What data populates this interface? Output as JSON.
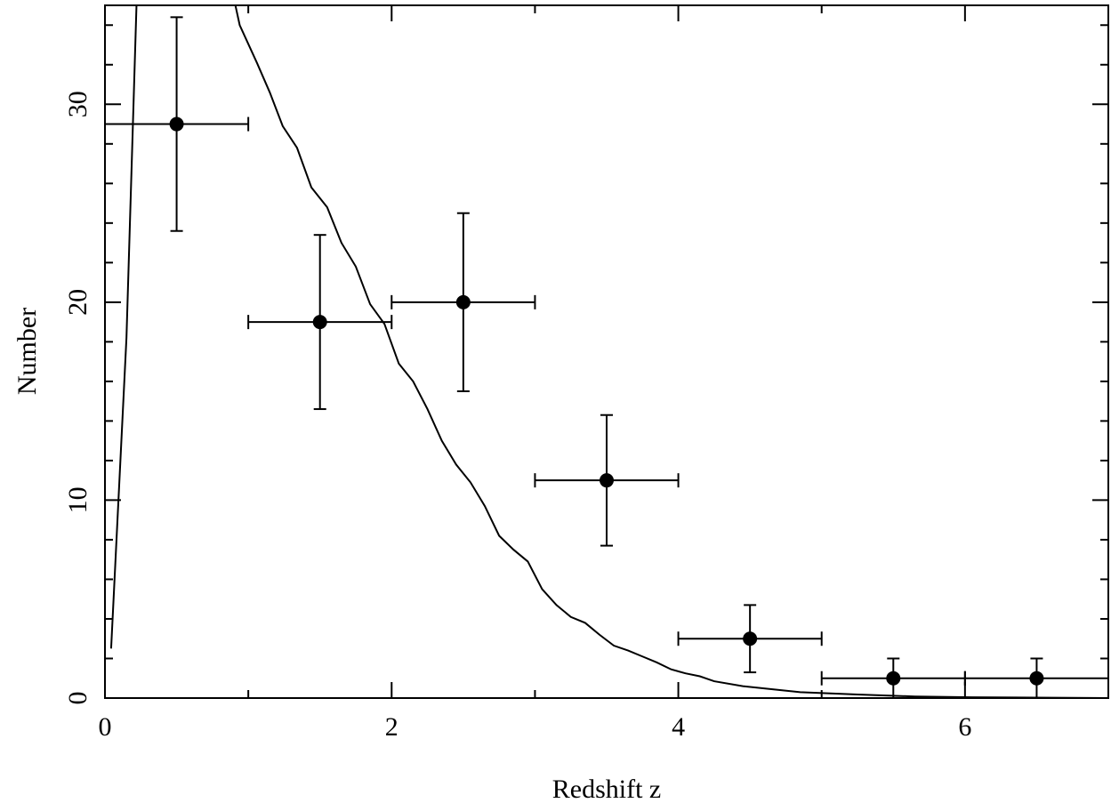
{
  "chart_data": {
    "type": "scatter",
    "xlabel": "Redshift z",
    "ylabel": "Number",
    "xlim": [
      0,
      7
    ],
    "ylim": [
      0,
      35
    ],
    "xticks": [
      0,
      2,
      4,
      6
    ],
    "yticks": [
      0,
      10,
      20,
      30
    ],
    "xminorticks": [
      1,
      3,
      5
    ],
    "yminorticks": [
      2,
      4,
      6,
      8,
      12,
      14,
      16,
      18,
      22,
      24,
      26,
      28,
      32,
      34
    ],
    "series": [
      {
        "type": "errorbar",
        "color": "#000000",
        "x": [
          0.5,
          1.5,
          2.5,
          3.5,
          4.5,
          5.5,
          6.5
        ],
        "values": [
          29,
          19,
          20,
          11,
          3,
          1,
          1
        ],
        "xerr": [
          0.5,
          0.5,
          0.5,
          0.5,
          0.5,
          0.5,
          0.5
        ],
        "yerr": [
          5.4,
          4.4,
          4.5,
          3.3,
          1.7,
          1,
          1
        ]
      },
      {
        "type": "line",
        "color": "#000000",
        "x": [
          0.043,
          0.15,
          0.22,
          0.5,
          0.91,
          0.94,
          1.06,
          1.15,
          1.24,
          1.34,
          1.44,
          1.55,
          1.65,
          1.75,
          1.85,
          1.95,
          2.05,
          2.15,
          2.25,
          2.35,
          2.45,
          2.55,
          2.65,
          2.75,
          2.85,
          2.95,
          3.05,
          3.15,
          3.25,
          3.35,
          3.45,
          3.55,
          3.65,
          3.75,
          3.85,
          3.95,
          4.05,
          4.15,
          4.25,
          4.45,
          4.65,
          4.85,
          5.25,
          5.65,
          6.05,
          7
        ],
        "values": [
          2.5,
          18.2,
          35,
          null,
          35,
          34,
          32.1,
          30.6,
          28.9,
          27.8,
          25.8,
          24.8,
          23,
          21.8,
          19.9,
          18.9,
          16.9,
          16,
          14.6,
          13,
          11.8,
          10.9,
          9.7,
          8.2,
          7.5,
          6.9,
          5.5,
          4.7,
          4.1,
          3.8,
          3.2,
          2.65,
          2.4,
          2.1,
          1.8,
          1.45,
          1.25,
          1.1,
          0.85,
          0.6,
          0.45,
          0.3,
          0.18,
          0.08,
          0.04,
          0
        ]
      }
    ]
  }
}
